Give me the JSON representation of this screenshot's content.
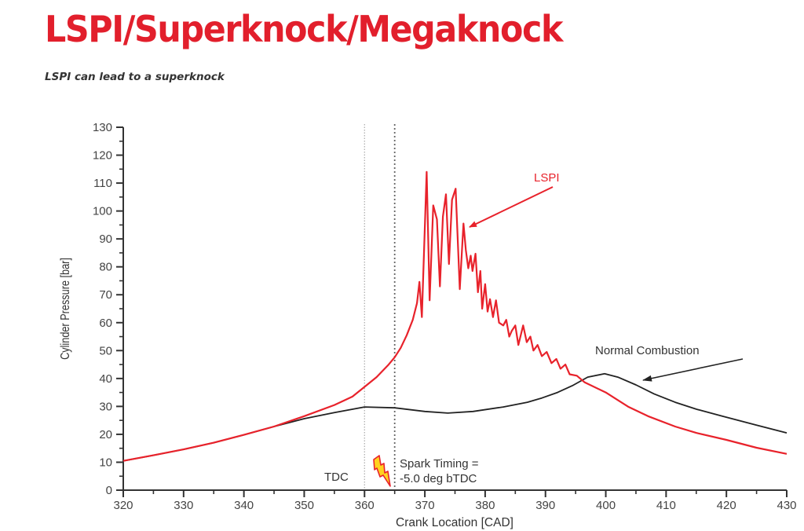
{
  "page": {
    "title": "LSPI/Superknock/Megaknock",
    "subtitle": "LSPI can lead to a superknock"
  },
  "colors": {
    "title": "#e21f2c",
    "lspi_series": "#e8222b",
    "normal_series": "#222222",
    "axis": "#333333"
  },
  "chart_data": {
    "type": "line",
    "title": "",
    "xlabel": "Crank Location [CAD]",
    "ylabel": "Cylinder Pressure [bar]",
    "xlim": [
      320,
      430
    ],
    "ylim": [
      0,
      130
    ],
    "x_ticks": [
      320,
      330,
      340,
      350,
      360,
      370,
      380,
      390,
      400,
      410,
      420,
      430
    ],
    "y_ticks": [
      0,
      10,
      20,
      30,
      40,
      50,
      60,
      70,
      80,
      90,
      100,
      110,
      120,
      130
    ],
    "grid": false,
    "legend": "none (inline annotations)",
    "series": [
      {
        "name": "LSPI",
        "color": "#e8222b",
        "points": [
          [
            320,
            10.5
          ],
          [
            325,
            12.5
          ],
          [
            330,
            14.6
          ],
          [
            335,
            17
          ],
          [
            340,
            19.8
          ],
          [
            345,
            22.8
          ],
          [
            350,
            26.5
          ],
          [
            355,
            30.5
          ],
          [
            358,
            33.5
          ],
          [
            360,
            37
          ],
          [
            362,
            40.5
          ],
          [
            364,
            45
          ],
          [
            365,
            47.6
          ],
          [
            366,
            51
          ],
          [
            367,
            55.5
          ],
          [
            368,
            61
          ],
          [
            368.7,
            67
          ],
          [
            369.1,
            74.6
          ],
          [
            369.5,
            62
          ],
          [
            370.3,
            114
          ],
          [
            370.8,
            68
          ],
          [
            371.4,
            102
          ],
          [
            372,
            97
          ],
          [
            372.5,
            73
          ],
          [
            373,
            98
          ],
          [
            373.5,
            106
          ],
          [
            374,
            81
          ],
          [
            374.5,
            104
          ],
          [
            375.1,
            108
          ],
          [
            375.8,
            72
          ],
          [
            376.4,
            95.5
          ],
          [
            376.8,
            86
          ],
          [
            377.2,
            79.5
          ],
          [
            377.6,
            84
          ],
          [
            377.9,
            78.5
          ],
          [
            378.4,
            84.7
          ],
          [
            378.8,
            70.9
          ],
          [
            379.2,
            78.5
          ],
          [
            379.5,
            65
          ],
          [
            380.0,
            73.8
          ],
          [
            380.4,
            64
          ],
          [
            380.8,
            68.4
          ],
          [
            381.3,
            62
          ],
          [
            381.8,
            68
          ],
          [
            382.3,
            60
          ],
          [
            383.0,
            59
          ],
          [
            383.5,
            61
          ],
          [
            384.0,
            55
          ],
          [
            384.4,
            57
          ],
          [
            385.0,
            59
          ],
          [
            385.5,
            52
          ],
          [
            386.3,
            59
          ],
          [
            386.9,
            53
          ],
          [
            387.5,
            55
          ],
          [
            388.0,
            50
          ],
          [
            388.7,
            52
          ],
          [
            389.4,
            48
          ],
          [
            390.2,
            49.5
          ],
          [
            391.0,
            45.5
          ],
          [
            391.8,
            47
          ],
          [
            392.5,
            43.5
          ],
          [
            393.3,
            45
          ],
          [
            394.0,
            41.5
          ],
          [
            395.2,
            41
          ],
          [
            396.5,
            38.6
          ],
          [
            400,
            35
          ],
          [
            403.7,
            29.9
          ],
          [
            407,
            26.5
          ],
          [
            411.5,
            22.8
          ],
          [
            415,
            20.5
          ],
          [
            420,
            18.0
          ],
          [
            425,
            15.2
          ],
          [
            430,
            13
          ]
        ]
      },
      {
        "name": "Normal Combustion",
        "color": "#222222",
        "points": [
          [
            320,
            10.5
          ],
          [
            325,
            12.5
          ],
          [
            330,
            14.6
          ],
          [
            335,
            17
          ],
          [
            340,
            19.8
          ],
          [
            345,
            22.8
          ],
          [
            350,
            25.6
          ],
          [
            355,
            27.8
          ],
          [
            360,
            29.8
          ],
          [
            365,
            29.5
          ],
          [
            370,
            28.2
          ],
          [
            373.8,
            27.6
          ],
          [
            378,
            28.2
          ],
          [
            383,
            29.8
          ],
          [
            387,
            31.5
          ],
          [
            389.4,
            33
          ],
          [
            392,
            35
          ],
          [
            394.6,
            37.6
          ],
          [
            397,
            40.5
          ],
          [
            399.8,
            41.7
          ],
          [
            402,
            40.5
          ],
          [
            405,
            37.7
          ],
          [
            408,
            34.5
          ],
          [
            411.5,
            31.5
          ],
          [
            415,
            29
          ],
          [
            419.3,
            26.5
          ],
          [
            425,
            23.3
          ],
          [
            430,
            20.5
          ]
        ]
      }
    ],
    "vertical_markers": [
      {
        "x": 360,
        "label": "TDC",
        "style": "dotted light gray"
      },
      {
        "x": 365,
        "label": "Spark Timing = -5.0 deg bTDC",
        "style": "dotted dark gray"
      }
    ],
    "annotations": [
      {
        "text": "LSPI",
        "color": "#e8222b",
        "arrow_to": [
          376.5,
          93
        ]
      },
      {
        "text": "Normal Combustion",
        "color": "#222222",
        "arrow_to": [
          402,
          39.5
        ]
      },
      {
        "text": "TDC"
      },
      {
        "text": "Spark Timing ="
      },
      {
        "text": "-5.0 deg bTDC"
      }
    ]
  }
}
